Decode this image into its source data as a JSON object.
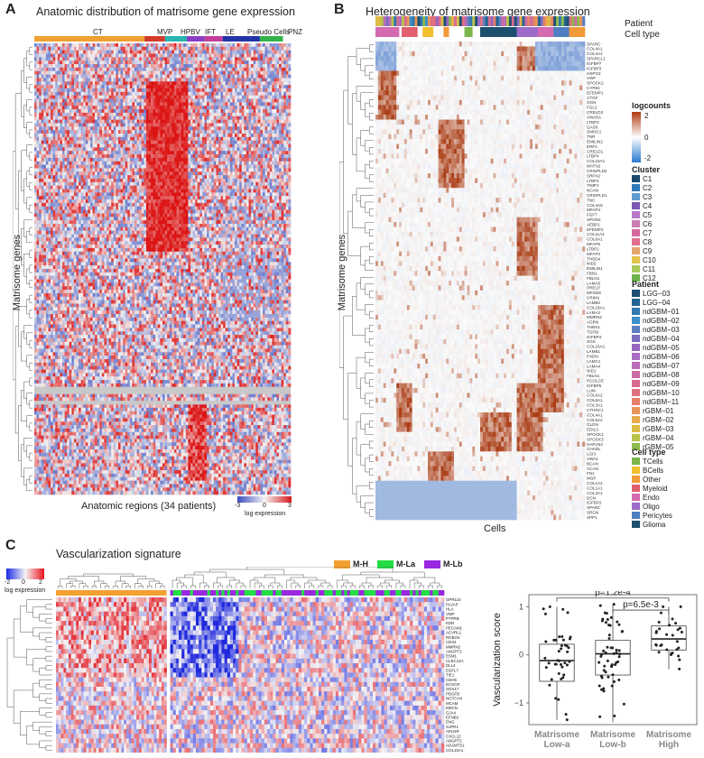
{
  "panels": {
    "a": {
      "letter": "A",
      "title": "Anatomic distribution of matrisome gene expression",
      "y_label": "Matrisome genes",
      "x_label": "Anatomic regions (34 patients)",
      "regions": [
        {
          "name": "CT",
          "color": "#f0a030"
        },
        {
          "name": "MVP",
          "color": "#d33a2c"
        },
        {
          "name": "HPBV",
          "color": "#28b4b0"
        },
        {
          "name": "IFT",
          "color": "#8a3fc4"
        },
        {
          "name": "LE",
          "color": "#c43f9a"
        },
        {
          "name": "Pseudo Cells",
          "color": "#2233aa"
        },
        {
          "name": "PNZ",
          "color": "#32b44a"
        }
      ],
      "scale_title": "log expression",
      "scale_ticks": [
        "-3",
        "0",
        "3"
      ]
    },
    "b": {
      "letter": "B",
      "title": "Heterogeneity of matrisome gene expression",
      "y_label": "Matrisome genes",
      "x_label": "Cells",
      "annotation_rows": [
        "Patient",
        "Cell type"
      ],
      "gene_labels": [
        "SPARC",
        "COL4A1",
        "COL4A2",
        "SPARCL1",
        "IGFBP7",
        "IGFBP3",
        "HSPG2",
        "VWF",
        "SPOCK2",
        "CYR61",
        "EFEMP1",
        "CTGF",
        "OGN",
        "FGL2",
        "CRELD2",
        "VWA5A",
        "LTBP3",
        "GAS6",
        "SMOC1",
        "TNR",
        "EMILIN2",
        "ERFA",
        "CRELD1",
        "LTBP4",
        "COL15A1",
        "MATN2",
        "CRISPLD2",
        "SRPX2",
        "LTBP1",
        "TIMP1",
        "NCAN",
        "CRISPLD1",
        "TNC",
        "COL4A5",
        "MFAP4",
        "FGF7",
        "SPON2",
        "AEBP1",
        "EFEMP2",
        "COL11A1",
        "COL6A1",
        "MFAP5",
        "LTBP2",
        "MFAP2",
        "THSD4",
        "NID2",
        "EMILIN1",
        "FBN1",
        "FBLN1",
        "LAMA5",
        "PRELP",
        "MFGE8",
        "CRIM1",
        "LAMB2",
        "COL18A1",
        "LAMA2",
        "MMRN2",
        "AGRN",
        "THBS1",
        "TGFBI",
        "IGFBP4",
        "SGS",
        "COL16A1",
        "LAMB1",
        "PXDN",
        "LAMC1",
        "LAMA4",
        "NID1",
        "FBLN1",
        "PCOLCE",
        "IGFBP5",
        "LUM",
        "COL6A2",
        "COL6A1",
        "COL3A1",
        "CTHRC1",
        "COL4A1",
        "COL5A2",
        "GLDN",
        "EDIL3",
        "SPOCK1",
        "SPOCK3",
        "HAPLN2",
        "CHADL",
        "LGI3",
        "VWA1",
        "BCAN",
        "VCAN",
        "FN1",
        "MGP",
        "COL1A2",
        "COL1A1",
        "COL3A1",
        "DCN",
        "IGFBP2",
        "SPARC",
        "SRGN",
        "SPP1"
      ],
      "logcounts": {
        "title": "logcounts",
        "ticks": [
          "2",
          "0",
          "-2"
        ]
      },
      "cluster": {
        "title": "Cluster",
        "items": [
          {
            "name": "C1",
            "color": "#1a4a72"
          },
          {
            "name": "C2",
            "color": "#2f78b8"
          },
          {
            "name": "C3",
            "color": "#5f9bd0"
          },
          {
            "name": "C4",
            "color": "#7a58b3"
          },
          {
            "name": "C5",
            "color": "#b77ac8"
          },
          {
            "name": "C6",
            "color": "#c97fb4"
          },
          {
            "name": "C7",
            "color": "#d46aa0"
          },
          {
            "name": "C8",
            "color": "#e0708c"
          },
          {
            "name": "C9",
            "color": "#e6a56b"
          },
          {
            "name": "C10",
            "color": "#e2c44a"
          },
          {
            "name": "C11",
            "color": "#a8c85a"
          },
          {
            "name": "C12",
            "color": "#6fb24a"
          }
        ]
      },
      "patient": {
        "title": "Patient",
        "items": [
          {
            "name": "LGG−03",
            "color": "#1d4f73"
          },
          {
            "name": "LGG−04",
            "color": "#23638f"
          },
          {
            "name": "ndGBM−01",
            "color": "#2f78b0"
          },
          {
            "name": "ndGBM−02",
            "color": "#3c8fc8"
          },
          {
            "name": "ndGBM−03",
            "color": "#5a7fc0"
          },
          {
            "name": "ndGBM−04",
            "color": "#7a6cc0"
          },
          {
            "name": "ndGBM−05",
            "color": "#9466bf"
          },
          {
            "name": "ndGBM−06",
            "color": "#a86cc4"
          },
          {
            "name": "ndGBM−07",
            "color": "#bc6cb8"
          },
          {
            "name": "ndGBM−08",
            "color": "#cc6aa4"
          },
          {
            "name": "ndGBM−09",
            "color": "#d86a90"
          },
          {
            "name": "ndGBM−10",
            "color": "#e07080"
          },
          {
            "name": "ndGBM−11",
            "color": "#e4806a"
          },
          {
            "name": "rGBM−01",
            "color": "#e89558"
          },
          {
            "name": "rGBM−02",
            "color": "#e8ab4e"
          },
          {
            "name": "rGBM−03",
            "color": "#dcbc46"
          },
          {
            "name": "rGBM−04",
            "color": "#b8c248"
          },
          {
            "name": "rGBM−05",
            "color": "#8cba4c"
          }
        ]
      },
      "celltype": {
        "title": "Cell type",
        "items": [
          {
            "name": "TCells",
            "color": "#7ab648"
          },
          {
            "name": "BCells",
            "color": "#f0c030"
          },
          {
            "name": "Other",
            "color": "#f29a3a"
          },
          {
            "name": "Myeloid",
            "color": "#e06070"
          },
          {
            "name": "Endo",
            "color": "#d46ab0"
          },
          {
            "name": "Oligo",
            "color": "#9c6cc8"
          },
          {
            "name": "Pericytes",
            "color": "#4f7ec0"
          },
          {
            "name": "Glioma",
            "color": "#1d4f6f"
          }
        ]
      }
    },
    "c": {
      "letter": "C",
      "title": "Vascularization signature",
      "scale_title": "log expression",
      "scale_ticks": [
        "-2",
        "0",
        "2"
      ],
      "groups": [
        {
          "name": "M-H",
          "color": "#f4a030"
        },
        {
          "name": "M-La",
          "color": "#22dd44"
        },
        {
          "name": "M-Lb",
          "color": "#9a28e0"
        }
      ],
      "gene_labels": [
        "GPR116",
        "PLVAP",
        "HLA",
        "VWF",
        "PTPRB",
        "KDR",
        "PECAM1",
        "ACVRL1",
        "ROBO4",
        "CD34",
        "MMRN2",
        "ANGPT2",
        "ESM1",
        "CLEC14A",
        "DLL4",
        "EGFL7",
        "TIE1",
        "CDH5",
        "ECSCR",
        "SOX17",
        "PDGFB",
        "NOTCH4",
        "MCAM",
        "EMCN",
        "GJA4",
        "EFNB2",
        "ENG",
        "S1PR1",
        "APLNR",
        "CXCL12",
        "ANGPT2",
        "ADAMTS1",
        "COL15A1"
      ]
    }
  },
  "chart_data": [
    {
      "type": "heatmap",
      "title": "Anatomic distribution of matrisome gene expression",
      "xlabel": "Anatomic regions (34 patients)",
      "ylabel": "Matrisome genes",
      "column_groups": [
        "CT",
        "MVP",
        "HPBV",
        "IFT",
        "LE",
        "Pseudo Cells",
        "PNZ"
      ],
      "color_scale": {
        "label": "log expression",
        "min": -3,
        "mid": 0,
        "max": 3
      }
    },
    {
      "type": "heatmap",
      "title": "Heterogeneity of matrisome gene expression",
      "xlabel": "Cells",
      "ylabel": "Matrisome genes",
      "color_scale": {
        "label": "logcounts",
        "min": -2,
        "mid": 0,
        "max": 2
      }
    },
    {
      "type": "heatmap",
      "title": "Vascularization signature",
      "column_groups": [
        "M-H",
        "M-La",
        "M-Lb"
      ],
      "color_scale": {
        "label": "log expression",
        "min": -2,
        "mid": 0,
        "max": 2
      }
    },
    {
      "type": "box",
      "ylabel": "Vascularization score",
      "categories": [
        "Matrisome Low-a",
        "Matrisome Low-b",
        "Matrisome High"
      ],
      "boxes": [
        {
          "q1": -0.55,
          "median": -0.12,
          "q3": 0.22,
          "whisker_low": -1.35,
          "whisker_high": 1.0
        },
        {
          "q1": -0.42,
          "median": 0.02,
          "q3": 0.3,
          "whisker_low": -1.4,
          "whisker_high": 1.05
        },
        {
          "q1": 0.1,
          "median": 0.33,
          "q3": 0.6,
          "whisker_low": -0.3,
          "whisker_high": 1.0
        }
      ],
      "ylim": [
        -1.45,
        1.25
      ],
      "yticks": [
        -1,
        0,
        1
      ],
      "annotations": [
        "p=1.2e-4",
        "p=6.5e-3"
      ]
    }
  ]
}
